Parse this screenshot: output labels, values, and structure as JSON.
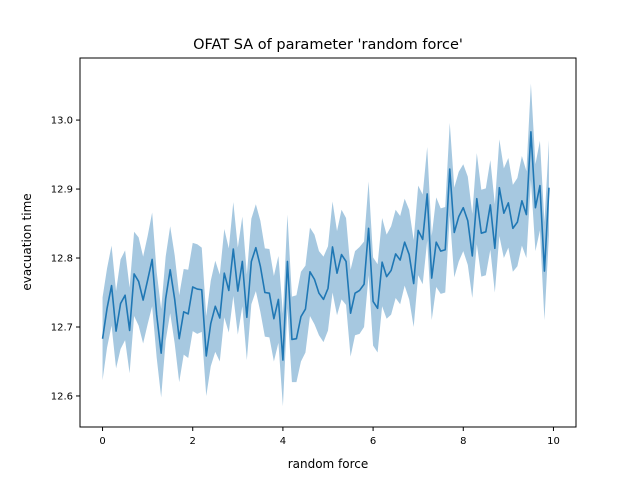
{
  "chart_data": {
    "type": "line",
    "title": "OFAT SA of parameter 'random force'",
    "xlabel": "random force",
    "ylabel": "evacuation time",
    "xlim": [
      -0.5,
      10.5
    ],
    "ylim": [
      12.555,
      13.09
    ],
    "xticks": [
      0,
      2,
      4,
      6,
      8,
      10
    ],
    "yticks": [
      12.6,
      12.7,
      12.8,
      12.9,
      13.0
    ],
    "xtick_labels": [
      "0",
      "2",
      "4",
      "6",
      "8",
      "10"
    ],
    "ytick_labels": [
      "12.6",
      "12.7",
      "12.8",
      "12.9",
      "13.0"
    ],
    "grid": false,
    "legend": "none",
    "colors": {
      "line": "#1f77b4",
      "band": "#a6c8e0"
    },
    "series": [
      {
        "x": [
          0.0,
          0.1,
          0.2,
          0.3,
          0.4,
          0.5,
          0.6,
          0.7,
          0.8,
          0.9,
          1.0,
          1.1,
          1.2,
          1.3,
          1.4,
          1.5,
          1.6,
          1.7,
          1.8,
          1.9,
          2.0,
          2.1,
          2.2,
          2.3,
          2.4,
          2.5,
          2.6,
          2.7,
          2.8,
          2.9,
          3.0,
          3.1,
          3.2,
          3.3,
          3.4,
          3.5,
          3.6,
          3.7,
          3.8,
          3.9,
          4.0,
          4.1,
          4.2,
          4.3,
          4.4,
          4.5,
          4.6,
          4.7,
          4.8,
          4.9,
          5.0,
          5.1,
          5.2,
          5.3,
          5.4,
          5.5,
          5.6,
          5.7,
          5.8,
          5.9,
          6.0,
          6.1,
          6.2,
          6.3,
          6.4,
          6.5,
          6.6,
          6.7,
          6.8,
          6.9,
          7.0,
          7.1,
          7.2,
          7.3,
          7.4,
          7.5,
          7.6,
          7.7,
          7.8,
          7.9,
          8.0,
          8.1,
          8.2,
          8.3,
          8.4,
          8.5,
          8.6,
          8.7,
          8.8,
          8.9,
          9.0,
          9.1,
          9.2,
          9.3,
          9.4,
          9.5,
          9.6,
          9.7,
          9.8,
          9.9,
          10.0
        ],
        "y": [
          12.683,
          12.727,
          12.76,
          12.694,
          12.734,
          12.746,
          12.695,
          12.777,
          12.766,
          12.739,
          12.768,
          12.798,
          12.718,
          12.662,
          12.741,
          12.783,
          12.74,
          12.683,
          12.722,
          12.719,
          12.758,
          12.755,
          12.754,
          12.658,
          12.705,
          12.73,
          12.713,
          12.778,
          12.753,
          12.813,
          12.752,
          12.795,
          12.714,
          12.795,
          12.815,
          12.788,
          12.75,
          12.749,
          12.712,
          12.74,
          12.652,
          12.795,
          12.682,
          12.683,
          12.715,
          12.726,
          12.78,
          12.769,
          12.749,
          12.74,
          12.756,
          12.816,
          12.778,
          12.805,
          12.795,
          12.72,
          12.749,
          12.753,
          12.762,
          12.843,
          12.737,
          12.727,
          12.794,
          12.773,
          12.782,
          12.806,
          12.797,
          12.823,
          12.805,
          12.763,
          12.84,
          12.827,
          12.893,
          12.771,
          12.823,
          12.81,
          12.812,
          12.929,
          12.837,
          12.86,
          12.873,
          12.854,
          12.803,
          12.886,
          12.836,
          12.838,
          12.877,
          12.814,
          12.902,
          12.865,
          12.88,
          12.843,
          12.852,
          12.883,
          12.863,
          12.983,
          12.873,
          12.905,
          12.781,
          12.902,
          null
        ],
        "lower": [
          12.623,
          12.67,
          12.702,
          12.64,
          12.668,
          12.681,
          12.633,
          12.716,
          12.702,
          12.676,
          12.704,
          12.73,
          12.656,
          12.598,
          12.68,
          12.72,
          12.676,
          12.62,
          12.66,
          12.655,
          12.694,
          12.69,
          12.693,
          12.6,
          12.643,
          12.664,
          12.65,
          12.714,
          12.692,
          12.745,
          12.689,
          12.73,
          12.652,
          12.733,
          12.752,
          12.722,
          12.686,
          12.685,
          12.65,
          12.677,
          12.585,
          12.727,
          12.62,
          12.62,
          12.65,
          12.663,
          12.716,
          12.704,
          12.688,
          12.678,
          12.695,
          12.75,
          12.717,
          12.74,
          12.732,
          12.657,
          12.688,
          12.69,
          12.7,
          12.775,
          12.673,
          12.663,
          12.73,
          12.712,
          12.718,
          12.742,
          12.733,
          12.76,
          12.74,
          12.7,
          12.775,
          12.762,
          12.825,
          12.71,
          12.758,
          12.748,
          12.75,
          12.862,
          12.772,
          12.795,
          12.81,
          12.79,
          12.742,
          12.82,
          12.773,
          12.775,
          12.812,
          12.75,
          12.832,
          12.8,
          12.815,
          12.78,
          12.788,
          12.818,
          12.8,
          12.913,
          12.81,
          12.84,
          12.71,
          12.833,
          null
        ],
        "upper": [
          12.743,
          12.785,
          12.818,
          12.752,
          12.798,
          12.811,
          12.757,
          12.838,
          12.83,
          12.802,
          12.832,
          12.866,
          12.78,
          12.726,
          12.802,
          12.846,
          12.804,
          12.746,
          12.784,
          12.783,
          12.822,
          12.82,
          12.815,
          12.716,
          12.767,
          12.796,
          12.776,
          12.842,
          12.814,
          12.881,
          12.815,
          12.86,
          12.776,
          12.857,
          12.878,
          12.854,
          12.814,
          12.813,
          12.774,
          12.803,
          12.719,
          12.863,
          12.744,
          12.746,
          12.78,
          12.789,
          12.844,
          12.834,
          12.81,
          12.802,
          12.817,
          12.882,
          12.839,
          12.87,
          12.858,
          12.783,
          12.81,
          12.816,
          12.824,
          12.911,
          12.801,
          12.791,
          12.858,
          12.834,
          12.846,
          12.87,
          12.861,
          12.886,
          12.87,
          12.826,
          12.905,
          12.892,
          12.961,
          12.832,
          12.888,
          12.872,
          12.874,
          12.996,
          12.902,
          12.925,
          12.936,
          12.918,
          12.864,
          12.952,
          12.899,
          12.901,
          12.942,
          12.878,
          12.972,
          12.93,
          12.945,
          12.906,
          12.916,
          12.948,
          12.926,
          13.053,
          12.936,
          12.97,
          12.852,
          12.971,
          null
        ]
      }
    ]
  }
}
